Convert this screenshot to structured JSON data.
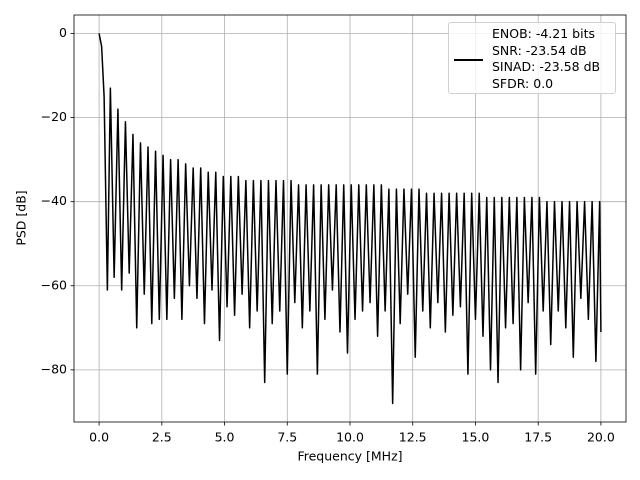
{
  "chart_data": {
    "type": "line",
    "xlabel": "Frequency [MHz]",
    "ylabel": "PSD [dB]",
    "x": [
      0,
      0.1,
      0.2,
      0.33,
      0.45,
      0.6,
      0.75,
      0.9,
      1.05,
      1.2,
      1.35,
      1.5,
      1.65,
      1.8,
      1.95,
      2.1,
      2.25,
      2.4,
      2.55,
      2.7,
      2.85,
      3.0,
      3.15,
      3.3,
      3.45,
      3.6,
      3.75,
      3.9,
      4.05,
      4.2,
      4.35,
      4.5,
      4.65,
      4.8,
      4.95,
      5.1,
      5.25,
      5.4,
      5.55,
      5.7,
      5.85,
      6.0,
      6.15,
      6.3,
      6.45,
      6.6,
      6.75,
      6.9,
      7.05,
      7.2,
      7.35,
      7.5,
      7.65,
      7.8,
      7.95,
      8.1,
      8.25,
      8.4,
      8.55,
      8.7,
      8.85,
      9.0,
      9.15,
      9.3,
      9.45,
      9.6,
      9.75,
      9.9,
      10.05,
      10.2,
      10.35,
      10.5,
      10.65,
      10.8,
      10.95,
      11.1,
      11.25,
      11.4,
      11.55,
      11.7,
      11.85,
      12.0,
      12.15,
      12.3,
      12.45,
      12.6,
      12.75,
      12.9,
      13.05,
      13.2,
      13.35,
      13.5,
      13.65,
      13.8,
      13.95,
      14.1,
      14.25,
      14.4,
      14.55,
      14.7,
      14.85,
      15.0,
      15.15,
      15.3,
      15.45,
      15.6,
      15.75,
      15.9,
      16.05,
      16.2,
      16.35,
      16.5,
      16.65,
      16.8,
      16.95,
      17.1,
      17.25,
      17.4,
      17.55,
      17.7,
      17.85,
      18.0,
      18.15,
      18.3,
      18.45,
      18.6,
      18.75,
      18.9,
      19.05,
      19.2,
      19.35,
      19.5,
      19.65,
      19.8,
      19.95,
      20.0
    ],
    "series": [
      {
        "name": "ENOB: -4.21 bits\nSNR: -23.54 dB\nSINAD: -23.58 dB\nSFDR: 0.0",
        "color": "#000000",
        "values": [
          0,
          -3,
          -15,
          -61,
          -13,
          -58,
          -18,
          -61,
          -21,
          -57,
          -24,
          -70,
          -26,
          -62,
          -27,
          -69,
          -28,
          -68,
          -29,
          -68,
          -30,
          -63,
          -30,
          -68,
          -31,
          -60,
          -32,
          -63,
          -32,
          -69,
          -33,
          -61,
          -33,
          -73,
          -34,
          -65,
          -34,
          -67,
          -34,
          -62,
          -35,
          -70,
          -35,
          -66,
          -35,
          -83,
          -35,
          -69,
          -35,
          -66,
          -35,
          -81,
          -35,
          -64,
          -36,
          -70,
          -36,
          -66,
          -36,
          -81,
          -36,
          -68,
          -36,
          -61,
          -36,
          -71,
          -36,
          -76,
          -36,
          -68,
          -36,
          -66,
          -36,
          -64,
          -36,
          -72,
          -36,
          -66,
          -37,
          -88,
          -37,
          -69,
          -37,
          -62,
          -37,
          -77,
          -37,
          -66,
          -38,
          -70,
          -38,
          -64,
          -38,
          -71,
          -38,
          -67,
          -38,
          -65,
          -38,
          -81,
          -38,
          -68,
          -38,
          -72,
          -39,
          -80,
          -39,
          -83,
          -39,
          -70,
          -39,
          -69,
          -39,
          -80,
          -39,
          -64,
          -39,
          -81,
          -39,
          -66,
          -40,
          -74,
          -40,
          -66,
          -40,
          -70,
          -40,
          -77,
          -40,
          -63,
          -40,
          -68,
          -40,
          -78,
          -40,
          -71
        ]
      }
    ],
    "xlim": [
      -1,
      21
    ],
    "ylim": [
      -92.4,
      4.4
    ],
    "xticks": [
      {
        "value": 0,
        "label": "0.0"
      },
      2.5,
      {
        "value": 5,
        "label": "5.0"
      },
      7.5,
      {
        "value": 10,
        "label": "10.0"
      },
      12.5,
      {
        "value": 15,
        "label": "15.0"
      },
      17.5,
      {
        "value": 20,
        "label": "20.0"
      }
    ],
    "yticks": [
      {
        "value": -80,
        "label": "−80"
      },
      {
        "value": -60,
        "label": "−60"
      },
      {
        "value": -40,
        "label": "−40"
      },
      {
        "value": -20,
        "label": "−20"
      },
      0
    ],
    "grid": true,
    "legend": "upper right"
  }
}
